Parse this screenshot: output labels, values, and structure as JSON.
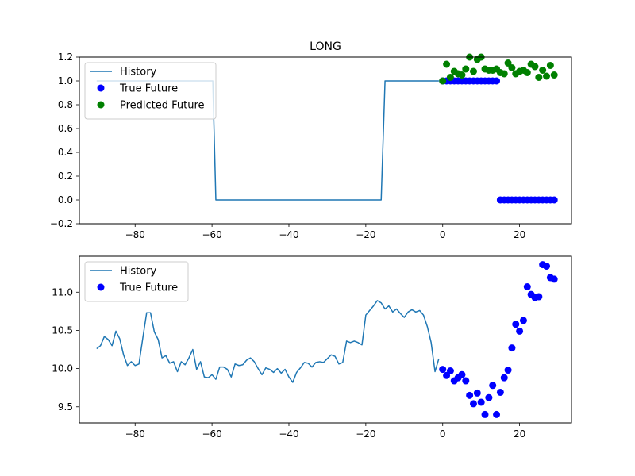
{
  "chart_data": [
    {
      "type": "line",
      "title": "LONG",
      "xlabel": "",
      "ylabel": "",
      "xlim": [
        -94.5,
        33.5
      ],
      "ylim": [
        -0.2,
        1.2
      ],
      "xticks": [
        -80,
        -60,
        -40,
        -20,
        0,
        20
      ],
      "xtick_labels": [
        "−80",
        "−60",
        "−40",
        "−20",
        "0",
        "20"
      ],
      "yticks": [
        -0.2,
        0.0,
        0.2,
        0.4,
        0.6,
        0.8,
        1.0,
        1.2
      ],
      "ytick_labels": [
        "−0.2",
        "0.0",
        "0.2",
        "0.4",
        "0.6",
        "0.8",
        "1.0",
        "1.2"
      ],
      "grid": false,
      "legend_position": "top-left",
      "legend": [
        {
          "label": "History",
          "kind": "line",
          "color": "#1f77b4"
        },
        {
          "label": "True Future",
          "kind": "marker",
          "color": "#0000ff"
        },
        {
          "label": "Predicted Future",
          "kind": "marker",
          "color": "#008000"
        }
      ],
      "series": [
        {
          "name": "History",
          "kind": "line",
          "color": "#1f77b4",
          "x": [
            -90,
            -59.8,
            -59,
            -16,
            -15,
            -1
          ],
          "y": [
            1.0,
            1.0,
            0.0,
            0.0,
            1.0,
            1.0
          ]
        },
        {
          "name": "True Future",
          "kind": "scatter",
          "color": "#0000ff",
          "x": [
            0,
            1,
            2,
            3,
            4,
            5,
            6,
            7,
            8,
            9,
            10,
            11,
            12,
            13,
            14,
            15,
            16,
            17,
            18,
            19,
            20,
            21,
            22,
            23,
            24,
            25,
            26,
            27,
            28,
            29
          ],
          "y": [
            1,
            1,
            1,
            1,
            1,
            1,
            1,
            1,
            1,
            1,
            1,
            1,
            1,
            1,
            1,
            0,
            0,
            0,
            0,
            0,
            0,
            0,
            0,
            0,
            0,
            0,
            0,
            0,
            0,
            0
          ]
        },
        {
          "name": "Predicted Future",
          "kind": "scatter",
          "color": "#008000",
          "x": [
            0,
            1,
            2,
            3,
            4,
            5,
            6,
            7,
            8,
            9,
            10,
            11,
            12,
            13,
            14,
            15,
            16,
            17,
            18,
            19,
            20,
            21,
            22,
            23,
            24,
            25,
            26,
            27,
            28,
            29
          ],
          "y": [
            1.0,
            1.14,
            1.03,
            1.08,
            1.06,
            1.05,
            1.1,
            1.2,
            1.08,
            1.18,
            1.2,
            1.1,
            1.09,
            1.09,
            1.1,
            1.07,
            1.06,
            1.15,
            1.11,
            1.06,
            1.08,
            1.09,
            1.07,
            1.14,
            1.12,
            1.03,
            1.09,
            1.04,
            1.13,
            1.05
          ]
        }
      ]
    },
    {
      "type": "line",
      "title": "",
      "xlabel": "",
      "ylabel": "",
      "xlim": [
        -94.5,
        33.5
      ],
      "ylim": [
        9.29,
        11.47
      ],
      "xticks": [
        -80,
        -60,
        -40,
        -20,
        0,
        20
      ],
      "xtick_labels": [
        "−80",
        "−60",
        "−40",
        "−20",
        "0",
        "20"
      ],
      "yticks": [
        9.5,
        10.0,
        10.5,
        11.0
      ],
      "ytick_labels": [
        "9.5",
        "10.0",
        "10.5",
        "11.0"
      ],
      "grid": false,
      "legend_position": "top-left",
      "legend": [
        {
          "label": "History",
          "kind": "line",
          "color": "#1f77b4"
        },
        {
          "label": "True Future",
          "kind": "marker",
          "color": "#0000ff"
        }
      ],
      "series": [
        {
          "name": "History",
          "kind": "line",
          "color": "#1f77b4",
          "x": [
            -90,
            -89,
            -88,
            -87,
            -86,
            -85,
            -84,
            -83,
            -82,
            -81,
            -80,
            -79,
            -78,
            -77,
            -76,
            -75,
            -74,
            -73,
            -72,
            -71,
            -70,
            -69,
            -68,
            -67,
            -66,
            -65,
            -64,
            -63,
            -62,
            -61,
            -60,
            -59,
            -58,
            -57,
            -56,
            -55,
            -54,
            -53,
            -52,
            -51,
            -50,
            -49,
            -48,
            -47,
            -46,
            -45,
            -44,
            -43,
            -42,
            -41,
            -40,
            -39,
            -38,
            -37,
            -36,
            -35,
            -34,
            -33,
            -32,
            -31,
            -30,
            -29,
            -28,
            -27,
            -26,
            -25,
            -24,
            -23,
            -22,
            -21,
            -20,
            -19,
            -18,
            -17,
            -16,
            -15,
            -14,
            -13,
            -12,
            -11,
            -10,
            -9,
            -8,
            -7,
            -6,
            -5,
            -4,
            -3,
            -2,
            -1
          ],
          "y": [
            10.26,
            10.3,
            10.42,
            10.38,
            10.3,
            10.49,
            10.39,
            10.18,
            10.04,
            10.09,
            10.04,
            10.06,
            10.4,
            10.73,
            10.73,
            10.48,
            10.38,
            10.14,
            10.17,
            10.07,
            10.09,
            9.96,
            10.09,
            10.05,
            10.14,
            10.25,
            9.99,
            10.09,
            9.89,
            9.88,
            9.92,
            9.86,
            10.02,
            10.02,
            9.99,
            9.89,
            10.06,
            10.04,
            10.05,
            10.11,
            10.14,
            10.09,
            10.0,
            9.92,
            10.01,
            9.99,
            9.95,
            10.0,
            9.94,
            9.99,
            9.89,
            9.82,
            9.95,
            10.01,
            10.08,
            10.07,
            10.02,
            10.08,
            10.09,
            10.08,
            10.13,
            10.18,
            10.16,
            10.06,
            10.08,
            10.36,
            10.34,
            10.36,
            10.34,
            10.31,
            10.7,
            10.76,
            10.82,
            10.89,
            10.86,
            10.78,
            10.82,
            10.74,
            10.78,
            10.72,
            10.67,
            10.74,
            10.77,
            10.74,
            10.76,
            10.7,
            10.55,
            10.34,
            9.96,
            10.13
          ]
        },
        {
          "name": "True Future",
          "kind": "scatter",
          "color": "#0000ff",
          "x": [
            0,
            1,
            2,
            3,
            4,
            5,
            6,
            7,
            8,
            9,
            10,
            11,
            12,
            13,
            14,
            15,
            16,
            17,
            18,
            19,
            20,
            21,
            22,
            23,
            24,
            25,
            26,
            27,
            28,
            29
          ],
          "y": [
            9.99,
            9.91,
            9.97,
            9.84,
            9.88,
            9.92,
            9.84,
            9.65,
            9.54,
            9.68,
            9.56,
            9.4,
            9.62,
            9.78,
            9.4,
            9.69,
            9.88,
            9.98,
            10.27,
            10.58,
            10.49,
            10.63,
            11.07,
            10.97,
            10.93,
            10.94,
            11.36,
            11.34,
            11.19,
            11.17
          ]
        }
      ]
    }
  ]
}
